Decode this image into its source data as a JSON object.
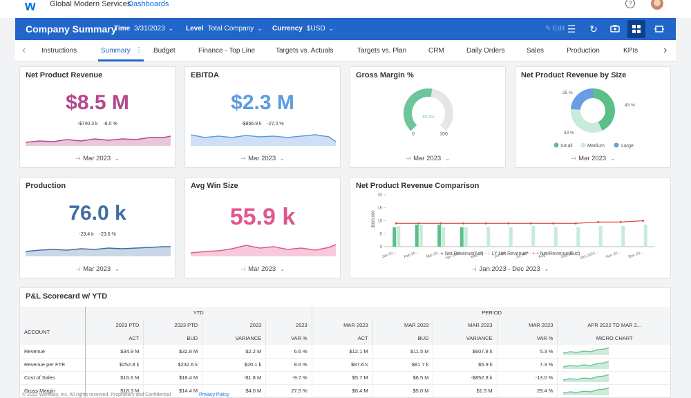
{
  "topbar": {
    "logo": "w",
    "org": "Global Modern Services",
    "dashboards_link": "Dashboards",
    "help_icon": "question-circle-icon",
    "avatar": "user-avatar"
  },
  "header": {
    "title": "Company Summary",
    "time_label": "Time",
    "time_value": "3/31/2023",
    "level_label": "Level",
    "level_value": "Total Company",
    "currency_label": "Currency",
    "currency_value": "$USD",
    "edit_label": "Edit",
    "bg_color": "#2166c8"
  },
  "tabs": [
    "Instructions",
    "Summary",
    "Budget",
    "Finance - Top Line",
    "Targets vs. Actuals",
    "Targets vs. Plan",
    "CRM",
    "Daily Orders",
    "Sales",
    "Production",
    "KPIs"
  ],
  "active_tab": "Summary",
  "cards": {
    "npr": {
      "title": "Net Product Revenue",
      "value": "$8.5 M",
      "delta1": "-$740.3 k",
      "delta2": "-8.0 %",
      "period": "Mar 2023",
      "color": "#b5478d"
    },
    "ebitda": {
      "title": "EBITDA",
      "value": "$2.3 M",
      "delta1": "-$866.9 k",
      "delta2": "-27.0 %",
      "period": "Mar 2023",
      "color": "#5b9be0"
    },
    "gm": {
      "title": "Gross Margin %",
      "value": "53.2%",
      "min": "0",
      "max": "100",
      "period": "Mar 2023",
      "fill": 0.532
    },
    "nprsize": {
      "title": "Net Product Revenue by Size",
      "slices": [
        {
          "name": "Small",
          "pct": "43 %",
          "color": "#5bbf8a"
        },
        {
          "name": "Medium",
          "pct": "33 %",
          "color": "#c7ecd9"
        },
        {
          "name": "Large",
          "pct": "25 %",
          "color": "#6a9de3"
        }
      ],
      "period": "Mar 2023"
    },
    "production": {
      "title": "Production",
      "value": "76.0 k",
      "delta1": "-23.4 k",
      "delta2": "-23.6 %",
      "period": "Mar 2023",
      "color": "#3f6ea3"
    },
    "avgwin": {
      "title": "Avg Win Size",
      "value": "55.9 k",
      "period": "Mar 2023",
      "color": "#e0578c"
    },
    "comparison": {
      "title": "Net Product Revenue Comparison",
      "period": "Jan 2023 - Dec 2023",
      "ylabel": "$000,000",
      "yticks": [
        "20",
        "15",
        "10",
        "5",
        "0"
      ],
      "legend": [
        "Net Revenue(Act)",
        "LY Net Revenue*",
        "Net Revenue(Bud)"
      ]
    }
  },
  "chart_data": {
    "type": "bar",
    "title": "Net Product Revenue Comparison",
    "ylabel": "$000,000",
    "ylim": [
      0,
      20
    ],
    "categories": [
      "Jan 20...",
      "Feb 20...",
      "Mar 20...",
      "Apr 2022...",
      "May 20...",
      "Jun 20...",
      "Jul 202...",
      "Aug 20...",
      "Sep 20...",
      "Oct 2022...",
      "Nov 20...",
      "Dec 20..."
    ],
    "series": [
      {
        "name": "Net Revenue(Act)",
        "kind": "bar",
        "color": "#5bbf8a",
        "values": [
          7.5,
          8.5,
          8.5,
          7.5,
          null,
          null,
          null,
          null,
          null,
          null,
          null,
          null
        ]
      },
      {
        "name": "LY Net Revenue*",
        "kind": "bar",
        "color": "#c7ecd9",
        "values": [
          8,
          8.5,
          7.5,
          7.5,
          7.5,
          7.5,
          8,
          7.5,
          7.5,
          8,
          8,
          8.5
        ]
      },
      {
        "name": "Net Revenue(Bud)",
        "kind": "line",
        "color": "#e04b3c",
        "values": [
          9,
          9,
          9,
          9,
          9,
          9,
          9,
          9,
          9,
          9.5,
          9.5,
          10
        ]
      }
    ]
  },
  "scorecard": {
    "title": "P&L Scorecard w/ YTD",
    "group_ytd": "YTD",
    "group_period": "PERIOD",
    "account_header": "ACCOUNT",
    "columns": [
      [
        "2023 PTD",
        "ACT"
      ],
      [
        "2023 PTD",
        "BUD"
      ],
      [
        "2023",
        "VARIANCE"
      ],
      [
        "2023",
        "VAR %"
      ],
      [
        "MAR 2023",
        "ACT"
      ],
      [
        "MAR 2023",
        "BUD"
      ],
      [
        "MAR 2023",
        "VARIANCE"
      ],
      [
        "MAR 2023",
        "VAR %"
      ],
      [
        "APR 2022 TO MAR 2...",
        "MICRO CHART"
      ]
    ],
    "rows": [
      {
        "account": "Revenue",
        "cells": [
          "$34.9 M",
          "$32.8 M",
          "$2.2 M",
          "6.6 %",
          "$12.1 M",
          "$11.5 M",
          "$607.8 k",
          "5.3 %"
        ]
      },
      {
        "account": "Revenue per FTE",
        "cells": [
          "$252.8 k",
          "$232.6 k",
          "$20.1 k",
          "8.6 %",
          "$87.6 k",
          "$81.7 k",
          "$5.9 k",
          "7.3 %"
        ]
      },
      {
        "account": "Cost of Sales",
        "cells": [
          "$16.6 M",
          "$18.4 M",
          "-$1.8 M",
          "-9.7 %",
          "$5.7 M",
          "$6.5 M",
          "-$852.8 k",
          "-13.0 %"
        ]
      },
      {
        "account": "Gross Margin",
        "cells": [
          "$18.3 M",
          "$14.4 M",
          "$4.0 M",
          "27.5 %",
          "$6.4 M",
          "$5.0 M",
          "$1.5 M",
          "29.4 %"
        ]
      }
    ]
  },
  "footer": {
    "copyright": "© 2022 Workday, Inc. All rights reserved. Proprietary and Confidential",
    "privacy": "Privacy Policy"
  }
}
